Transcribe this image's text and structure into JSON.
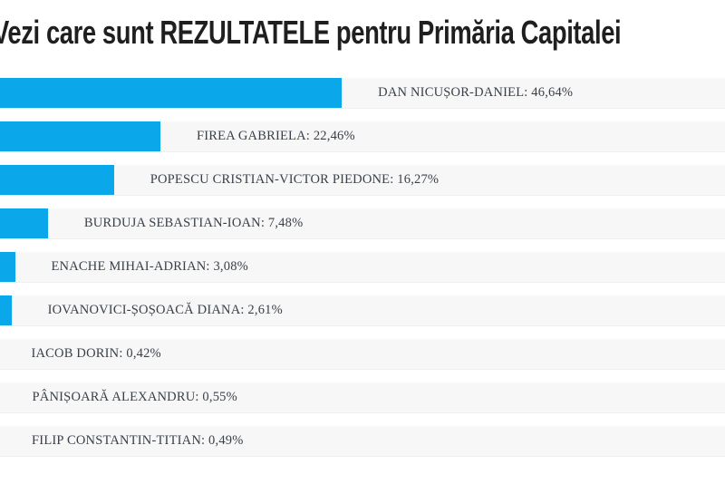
{
  "page": {
    "title": "Vezi care sunt REZULTATELE pentru Primăria Capitalei"
  },
  "chart_data": {
    "type": "bar",
    "orientation": "horizontal",
    "title": "Vezi care sunt REZULTATELE pentru Primăria Capitalei",
    "xlim": [
      0,
      100
    ],
    "grid": false,
    "legend": false,
    "bar_color": "#0aa8ea",
    "row_background_color": "#f7f7f7",
    "label_color": "#39404a",
    "categories": [
      "DAN NICUȘOR-DANIEL",
      "FIREA GABRIELA",
      "POPESCU CRISTIAN-VICTOR PIEDONE",
      "BURDUJA SEBASTIAN-IOAN",
      "ENACHE MIHAI-ADRIAN",
      "IOVANOVICI-ȘOȘOACĂ DIANA",
      "IACOB DORIN",
      "PÂNIȘOARĂ ALEXANDRU",
      "FILIP CONSTANTIN-TITIAN"
    ],
    "values": [
      46.64,
      22.46,
      16.27,
      7.48,
      3.08,
      2.61,
      0.42,
      0.55,
      0.49
    ],
    "rows": [
      {
        "candidate": "DAN NICUȘOR-DANIEL",
        "percent": 46.64,
        "label": "DAN NICUȘOR-DANIEL: 46,64%"
      },
      {
        "candidate": "FIREA GABRIELA",
        "percent": 22.46,
        "label": "FIREA GABRIELA: 22,46%"
      },
      {
        "candidate": "POPESCU CRISTIAN-VICTOR PIEDONE",
        "percent": 16.27,
        "label": "POPESCU CRISTIAN-VICTOR PIEDONE: 16,27%"
      },
      {
        "candidate": "BURDUJA SEBASTIAN-IOAN",
        "percent": 7.48,
        "label": "BURDUJA SEBASTIAN-IOAN: 7,48%"
      },
      {
        "candidate": "ENACHE MIHAI-ADRIAN",
        "percent": 3.08,
        "label": "ENACHE MIHAI-ADRIAN: 3,08%"
      },
      {
        "candidate": "IOVANOVICI-ȘOȘOACĂ DIANA",
        "percent": 2.61,
        "label": "IOVANOVICI-ȘOȘOACĂ DIANA: 2,61%"
      },
      {
        "candidate": "IACOB DORIN",
        "percent": 0.42,
        "label": "IACOB DORIN: 0,42%"
      },
      {
        "candidate": "PÂNIȘOARĂ ALEXANDRU",
        "percent": 0.55,
        "label": "PÂNIȘOARĂ ALEXANDRU: 0,55%"
      },
      {
        "candidate": "FILIP CONSTANTIN-TITIAN",
        "percent": 0.49,
        "label": "FILIP CONSTANTIN-TITIAN: 0,49%"
      }
    ]
  }
}
